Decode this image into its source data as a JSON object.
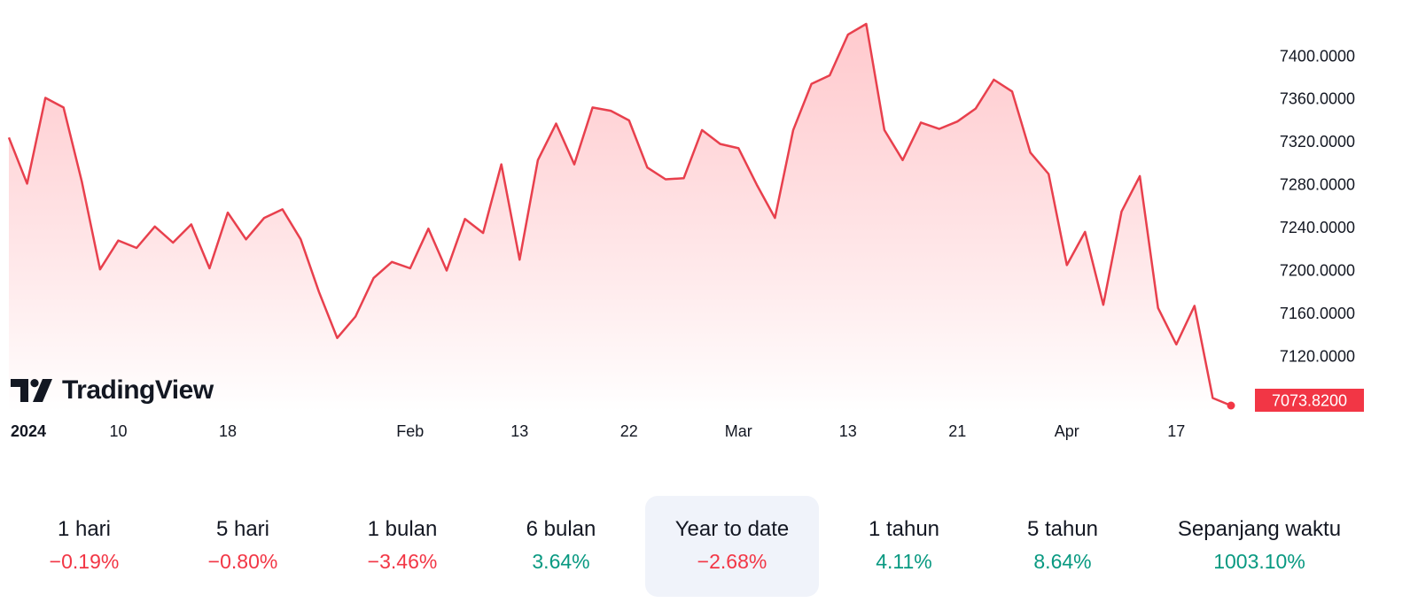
{
  "colors": {
    "line": "#e8404d",
    "fill_top": "#ffb8bd",
    "fill_bottom": "#ffffff",
    "label_bg": "#f23645",
    "negative": "#f23645",
    "positive": "#089981",
    "active_bg": "#f0f3fa"
  },
  "logo": {
    "text": "TradingView",
    "icon": "tradingview-logo-icon"
  },
  "chart_data": {
    "type": "area",
    "title": "",
    "xlabel": "",
    "ylabel": "",
    "grid": false,
    "y_axis_position": "right",
    "ylim": [
      7060,
      7440
    ],
    "y_ticks": [
      {
        "value": 7400,
        "label": "7400.0000"
      },
      {
        "value": 7360,
        "label": "7360.0000"
      },
      {
        "value": 7320,
        "label": "7320.0000"
      },
      {
        "value": 7280,
        "label": "7280.0000"
      },
      {
        "value": 7240,
        "label": "7240.0000"
      },
      {
        "value": 7200,
        "label": "7200.0000"
      },
      {
        "value": 7160,
        "label": "7160.0000"
      },
      {
        "value": 7120,
        "label": "7120.0000"
      }
    ],
    "x_ticks": [
      {
        "index": 0,
        "label": "2024",
        "bold": true
      },
      {
        "index": 6,
        "label": "10"
      },
      {
        "index": 12,
        "label": "18"
      },
      {
        "index": 22,
        "label": "Feb"
      },
      {
        "index": 28,
        "label": "13"
      },
      {
        "index": 34,
        "label": "22"
      },
      {
        "index": 40,
        "label": "Mar"
      },
      {
        "index": 46,
        "label": "13"
      },
      {
        "index": 52,
        "label": "21"
      },
      {
        "index": 58,
        "label": "Apr"
      },
      {
        "index": 64,
        "label": "17"
      }
    ],
    "last_value_label": "7073.8200",
    "series": [
      {
        "values": [
          7324,
          7281,
          7361,
          7352,
          7283,
          7201,
          7228,
          7221,
          7241,
          7226,
          7243,
          7202,
          7254,
          7229,
          7249,
          7257,
          7229,
          7180,
          7137,
          7157,
          7193,
          7208,
          7202,
          7239,
          7200,
          7248,
          7235,
          7299,
          7210,
          7303,
          7337,
          7299,
          7352,
          7349,
          7340,
          7296,
          7285,
          7286,
          7331,
          7318,
          7314,
          7280,
          7249,
          7331,
          7374,
          7382,
          7420,
          7430,
          7331,
          7303,
          7338,
          7332,
          7339,
          7351,
          7378,
          7367,
          7310,
          7290,
          7205,
          7236,
          7168,
          7255,
          7288,
          7165,
          7131,
          7167,
          7081,
          7074
        ]
      }
    ]
  },
  "periods": [
    {
      "label": "1 hari",
      "value": "−0.19%",
      "sign": "neg",
      "active": false
    },
    {
      "label": "5 hari",
      "value": "−0.80%",
      "sign": "neg",
      "active": false
    },
    {
      "label": "1 bulan",
      "value": "−3.46%",
      "sign": "neg",
      "active": false
    },
    {
      "label": "6 bulan",
      "value": "3.64%",
      "sign": "pos",
      "active": false
    },
    {
      "label": "Year to date",
      "value": "−2.68%",
      "sign": "neg",
      "active": true
    },
    {
      "label": "1 tahun",
      "value": "4.11%",
      "sign": "pos",
      "active": false
    },
    {
      "label": "5 tahun",
      "value": "8.64%",
      "sign": "pos",
      "active": false
    },
    {
      "label": "Sepanjang waktu",
      "value": "1003.10%",
      "sign": "pos",
      "active": false
    }
  ]
}
